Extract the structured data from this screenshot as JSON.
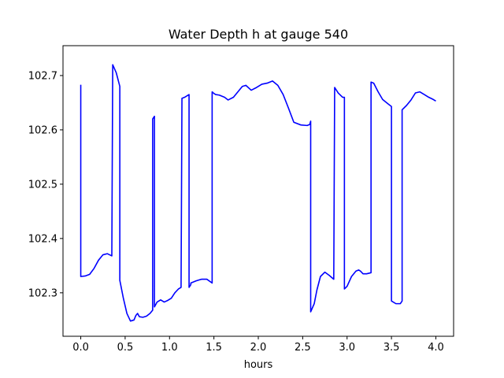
{
  "chart_data": {
    "type": "line",
    "title": "Water Depth h at gauge 540",
    "xlabel": "hours",
    "ylabel": "",
    "xlim": [
      -0.2,
      4.2
    ],
    "ylim": [
      102.22,
      102.755
    ],
    "x_ticks": [
      0.0,
      0.5,
      1.0,
      1.5,
      2.0,
      2.5,
      3.0,
      3.5,
      4.0
    ],
    "x_tick_labels": [
      "0.0",
      "0.5",
      "1.0",
      "1.5",
      "2.0",
      "2.5",
      "3.0",
      "3.5",
      "4.0"
    ],
    "y_ticks": [
      102.3,
      102.4,
      102.5,
      102.6,
      102.7
    ],
    "y_tick_labels": [
      "102.3",
      "102.4",
      "102.5",
      "102.6",
      "102.7"
    ],
    "grid": false,
    "line_color": "#0000ff",
    "series": [
      {
        "x": [
          0.0,
          0.0,
          0.05,
          0.1,
          0.15,
          0.2,
          0.25,
          0.3,
          0.35,
          0.36,
          0.36,
          0.4,
          0.44,
          0.44,
          0.48,
          0.52,
          0.56,
          0.6,
          0.62,
          0.64,
          0.66,
          0.7,
          0.74,
          0.78,
          0.81,
          0.81,
          0.83,
          0.83,
          0.86,
          0.9,
          0.94,
          0.98,
          1.02,
          1.06,
          1.1,
          1.13,
          1.14,
          1.14,
          1.17,
          1.22,
          1.22,
          1.24,
          1.24,
          1.3,
          1.36,
          1.42,
          1.48,
          1.48,
          1.5,
          1.52,
          1.56,
          1.62,
          1.66,
          1.72,
          1.78,
          1.82,
          1.86,
          1.92,
          1.98,
          2.04,
          2.1,
          2.16,
          2.22,
          2.28,
          2.34,
          2.4,
          2.48,
          2.55,
          2.58,
          2.59,
          2.59,
          2.63,
          2.66,
          2.7,
          2.75,
          2.8,
          2.85,
          2.86,
          2.86,
          2.9,
          2.95,
          2.97,
          2.97,
          3.0,
          3.05,
          3.1,
          3.13,
          3.15,
          3.18,
          3.22,
          3.27,
          3.27,
          3.3,
          3.35,
          3.4,
          3.46,
          3.5,
          3.5,
          3.55,
          3.6,
          3.62,
          3.62,
          3.67,
          3.72,
          3.77,
          3.82,
          3.87,
          3.92,
          3.97,
          4.0
        ],
        "y": [
          102.683,
          102.33,
          102.331,
          102.334,
          102.345,
          102.36,
          102.37,
          102.372,
          102.368,
          102.72,
          102.72,
          102.705,
          102.68,
          102.323,
          102.29,
          102.262,
          102.248,
          102.25,
          102.258,
          102.262,
          102.256,
          102.255,
          102.257,
          102.262,
          102.268,
          102.62,
          102.625,
          102.274,
          102.283,
          102.287,
          102.283,
          102.286,
          102.29,
          102.3,
          102.307,
          102.31,
          102.658,
          102.658,
          102.66,
          102.665,
          102.31,
          102.315,
          102.318,
          102.322,
          102.325,
          102.325,
          102.318,
          102.67,
          102.667,
          102.665,
          102.664,
          102.66,
          102.655,
          102.66,
          102.672,
          102.68,
          102.682,
          102.673,
          102.678,
          102.684,
          102.686,
          102.69,
          102.682,
          102.665,
          102.64,
          102.614,
          102.609,
          102.608,
          102.61,
          102.616,
          102.265,
          102.28,
          102.305,
          102.33,
          102.338,
          102.332,
          102.325,
          102.678,
          102.678,
          102.668,
          102.66,
          102.66,
          102.307,
          102.312,
          102.33,
          102.34,
          102.342,
          102.34,
          102.335,
          102.335,
          102.337,
          102.688,
          102.686,
          102.67,
          102.656,
          102.648,
          102.643,
          102.285,
          102.28,
          102.28,
          102.285,
          102.637,
          102.645,
          102.655,
          102.668,
          102.67,
          102.665,
          102.66,
          102.656,
          102.653
        ]
      }
    ]
  }
}
